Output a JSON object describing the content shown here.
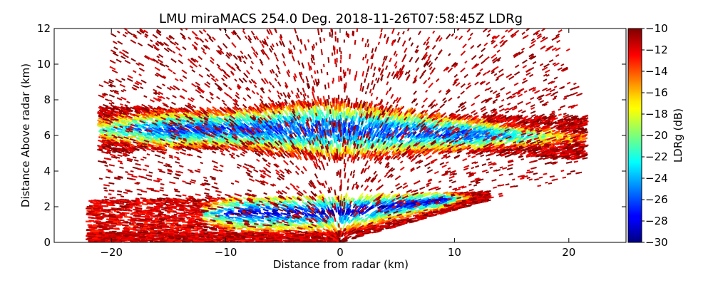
{
  "chart_data": {
    "type": "heatmap",
    "title": "LMU miraMACS 254.0 Deg. 2018-11-26T07:58:45Z  LDRg",
    "xlabel": "Distance from radar (km)",
    "ylabel": "Distance Above radar  (km)",
    "xlim": [
      -25,
      25
    ],
    "ylim": [
      0,
      12
    ],
    "xticks": [
      "−20",
      "−10",
      "0",
      "10",
      "20"
    ],
    "xtick_values": [
      -20,
      -10,
      0,
      10,
      20
    ],
    "yticks": [
      "0",
      "2",
      "4",
      "6",
      "8",
      "10",
      "12"
    ],
    "ytick_values": [
      0,
      2,
      4,
      6,
      8,
      10,
      12
    ],
    "colorbar": {
      "label": "LDRg (dB)",
      "range": [
        -30,
        -10
      ],
      "ticks": [
        "−10",
        "−12",
        "−14",
        "−16",
        "−18",
        "−20",
        "−22",
        "−24",
        "−26",
        "−28",
        "−30"
      ],
      "tick_values": [
        -10,
        -12,
        -14,
        -16,
        -18,
        -20,
        -22,
        -24,
        -26,
        -28,
        -30
      ],
      "colormap": "jet"
    },
    "layers": [
      {
        "name": "upper-cloud-layer",
        "x_range": [
          -21,
          21.5
        ],
        "height_range": [
          4.5,
          8.2
        ],
        "core_ldr_db": -26,
        "edge_ldr_db": -11
      },
      {
        "name": "lower-cloud-layer",
        "x_range": [
          -22,
          13
        ],
        "height_range": [
          0,
          3
        ],
        "core_ldr_db": -29,
        "edge_ldr_db": -11
      }
    ],
    "grid": false
  }
}
